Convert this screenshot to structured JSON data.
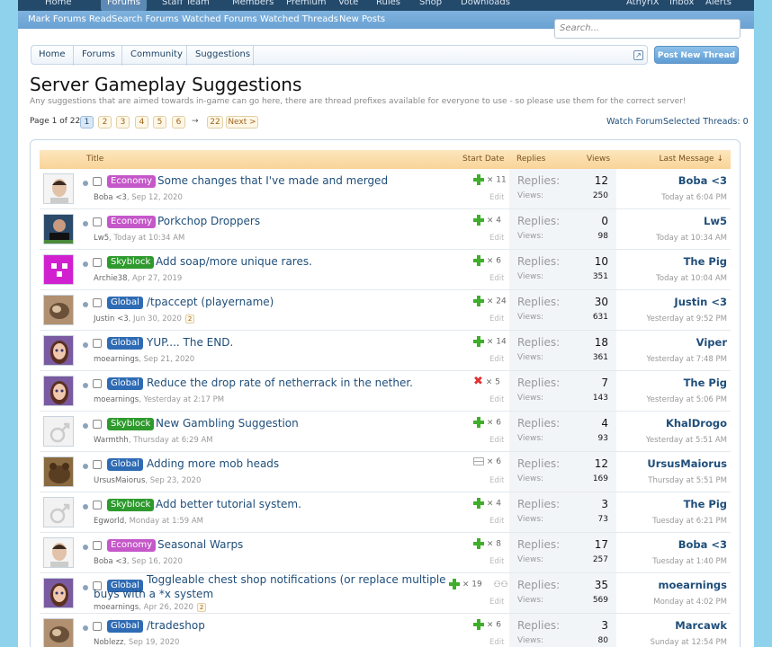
{
  "topnav": {
    "items": [
      "Home",
      "Forums",
      "Staff Team",
      "Members",
      "Premium",
      "Vote",
      "Rules",
      "Shop",
      "Downloads"
    ],
    "right": [
      "AthyriX",
      "Inbox",
      "Alerts"
    ]
  },
  "subnav": {
    "items": [
      "Mark Forums Read",
      "Search Forums",
      "Watched Forums",
      "Watched Threads",
      "New Posts"
    ]
  },
  "search": {
    "placeholder": "Search..."
  },
  "breadcrumbs": [
    "Home",
    "Forums",
    "Community",
    "Suggestions"
  ],
  "post_button": "Post New Thread",
  "title": "Server Gameplay Suggestions",
  "description": "Any suggestions that are aimed towards in-game can go here, there are thread prefixes available for everyone to use - so please use them for the correct server!",
  "pagination": {
    "label": "Page 1 of 22",
    "pages": [
      "1",
      "2",
      "3",
      "4",
      "5",
      "6"
    ],
    "dash": "→",
    "last": "22",
    "next": "Next >"
  },
  "links": {
    "watch": "Watch Forum",
    "selected": "Selected Threads: 0"
  },
  "header": {
    "title": "Title",
    "start_date": "Start Date",
    "replies": "Replies",
    "views": "Views",
    "last_message": "Last Message ↓"
  },
  "labels": {
    "replies": "Replies:",
    "views": "Views:",
    "edit": "Edit"
  },
  "colors": {
    "Economy": "#c558c9",
    "Skyblock": "#2e9a2e",
    "Global": "#2e6bb4"
  },
  "threads": [
    {
      "prefix": "Economy",
      "title": "Some changes that I've made and merged",
      "author": "Boba <3",
      "date": "Sep 12, 2020",
      "vote": "plus",
      "count": "× 11",
      "replies": "12",
      "views": "250",
      "last_user": "Boba <3",
      "last_date": "Today at 6:04 PM",
      "avatar": "face"
    },
    {
      "prefix": "Economy",
      "title": "Porkchop Droppers",
      "author": "Lw5",
      "date": "Today at 10:34 AM",
      "vote": "plus",
      "count": "× 4",
      "replies": "0",
      "views": "98",
      "last_user": "Lw5",
      "last_date": "Today at 10:34 AM",
      "avatar": "dark"
    },
    {
      "prefix": "Skyblock",
      "title": "Add soap/more unique rares.",
      "author": "Archie38",
      "date": "Apr 27, 2019",
      "vote": "plus",
      "count": "× 6",
      "replies": "10",
      "views": "351",
      "last_user": "The Pig",
      "last_date": "Today at 10:04 AM",
      "avatar": "magenta"
    },
    {
      "prefix": "Global",
      "title": "/tpaccept (playername)",
      "author": "Justin <3",
      "date": "Jun 30, 2020",
      "pages": "2",
      "vote": "plus",
      "count": "× 24",
      "replies": "30",
      "views": "631",
      "last_user": "Justin <3",
      "last_date": "Yesterday at 9:52 PM",
      "avatar": "tan"
    },
    {
      "prefix": "Global",
      "title": "YUP.... The END.",
      "author": "moearnings",
      "date": "Sep 21, 2020",
      "vote": "plus",
      "count": "× 14",
      "replies": "18",
      "views": "361",
      "last_user": "Viper",
      "last_date": "Yesterday at 7:48 PM",
      "avatar": "girl"
    },
    {
      "prefix": "Global",
      "title": "Reduce the drop rate of netherrack in the nether.",
      "author": "moearnings",
      "date": "Yesterday at 2:17 PM",
      "vote": "x",
      "count": "× 5",
      "replies": "7",
      "views": "143",
      "last_user": "The Pig",
      "last_date": "Yesterday at 5:06 PM",
      "avatar": "girl"
    },
    {
      "prefix": "Skyblock",
      "title": "New Gambling Suggestion",
      "author": "Warmthh",
      "date": "Thursday at 6:29 AM",
      "vote": "plus",
      "count": "× 6",
      "replies": "4",
      "views": "93",
      "last_user": "KhalDrogo",
      "last_date": "Yesterday at 5:51 AM",
      "avatar": "male"
    },
    {
      "prefix": "Global",
      "title": "Adding more mob heads",
      "author": "UrsusMaiorus",
      "date": "Sep 23, 2020",
      "vote": "eq",
      "count": "× 6",
      "replies": "12",
      "views": "169",
      "last_user": "UrsusMaiorus",
      "last_date": "Thursday at 5:51 PM",
      "avatar": "brown"
    },
    {
      "prefix": "Skyblock",
      "title": "Add better tutorial system.",
      "author": "Egworld",
      "date": "Monday at 1:59 AM",
      "vote": "plus",
      "count": "× 4",
      "replies": "3",
      "views": "73",
      "last_user": "The Pig",
      "last_date": "Tuesday at 6:21 PM",
      "avatar": "male"
    },
    {
      "prefix": "Economy",
      "title": "Seasonal Warps",
      "author": "Boba <3",
      "date": "Sep 16, 2020",
      "vote": "plus",
      "count": "× 8",
      "replies": "17",
      "views": "257",
      "last_user": "Boba <3",
      "last_date": "Tuesday at 1:40 PM",
      "avatar": "face"
    },
    {
      "prefix": "Global",
      "title": "Toggleable chest shop notifications (or replace multiple",
      "title2": "buys with a *x system",
      "author": "moearnings",
      "date": "Apr 26, 2020",
      "pages": "2",
      "vote": "plus",
      "count": "× 19",
      "replies": "35",
      "views": "569",
      "last_user": "moearnings",
      "last_date": "Monday at 4:02 PM",
      "avatar": "girl"
    },
    {
      "prefix": "Global",
      "title": "/tradeshop",
      "author": "Noblezz",
      "date": "Sep 19, 2020",
      "vote": "plus",
      "count": "× 6",
      "replies": "3",
      "views": "80",
      "last_user": "Marcawk",
      "last_date": "Sunday at 12:54 PM",
      "avatar": "tan"
    }
  ]
}
